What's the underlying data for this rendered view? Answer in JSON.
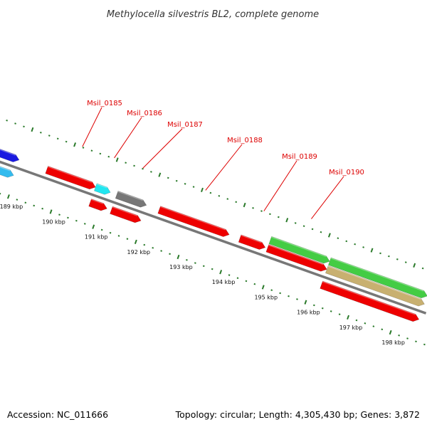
{
  "title": "Methylocella silvestris BL2, complete genome",
  "footer": {
    "accession": "Accession: NC_011666",
    "stats": "Topology: circular; Length: 4,305,430 bp; Genes: 3,872"
  },
  "colors": {
    "backbone": "#777777",
    "tick": "#2a7a2a",
    "label": "#dd0000",
    "cds_red": "#ee0000",
    "cds_blue": "#1a1ae0",
    "cds_lightblue": "#33bbee",
    "cds_cyan": "#22e6f0",
    "cds_gray": "#777777",
    "cds_green": "#44cc44",
    "cds_tan": "#c8b070"
  },
  "scale_labels": [
    "189 kbp",
    "190 kbp",
    "191 kbp",
    "192 kbp",
    "193 kbp",
    "194 kbp",
    "195 kbp",
    "196 kbp",
    "197 kbp",
    "198 kbp"
  ],
  "gene_labels": [
    "Msil_0185",
    "Msil_0186",
    "Msil_0187",
    "Msil_0188",
    "Msil_0189",
    "Msil_0190"
  ],
  "genes": [
    {
      "start": 188.0,
      "end": 188.95,
      "color": "cds_blue",
      "track": "outer1",
      "label_index": -1
    },
    {
      "start": 188.0,
      "end": 188.95,
      "color": "cds_lightblue",
      "track": "inner1",
      "label_index": -1
    },
    {
      "start": 189.6,
      "end": 190.75,
      "color": "cds_red",
      "track": "outer1",
      "label_index": 0
    },
    {
      "start": 190.75,
      "end": 191.1,
      "color": "cds_cyan",
      "track": "outer1",
      "label_index": 1
    },
    {
      "start": 190.75,
      "end": 191.15,
      "color": "cds_red",
      "track": "inner1",
      "label_index": -1
    },
    {
      "start": 191.25,
      "end": 191.95,
      "color": "cds_gray",
      "track": "outer1",
      "label_index": 2
    },
    {
      "start": 191.25,
      "end": 191.95,
      "color": "cds_red",
      "track": "inner1",
      "label_index": -1
    },
    {
      "start": 192.25,
      "end": 193.9,
      "color": "cds_red",
      "track": "outer1",
      "label_index": 3
    },
    {
      "start": 194.15,
      "end": 194.75,
      "color": "cds_red",
      "track": "outer1",
      "label_index": 4
    },
    {
      "start": 194.8,
      "end": 196.2,
      "color": "cds_green",
      "track": "outer2",
      "label_index": 5
    },
    {
      "start": 194.8,
      "end": 196.2,
      "color": "cds_red",
      "track": "outer1",
      "label_index": -1
    },
    {
      "start": 196.2,
      "end": 198.5,
      "color": "cds_green",
      "track": "outer2",
      "label_index": -1
    },
    {
      "start": 196.2,
      "end": 198.5,
      "color": "cds_tan",
      "track": "outer1",
      "label_index": -1
    },
    {
      "start": 196.2,
      "end": 198.5,
      "color": "cds_red",
      "track": "inner1",
      "label_index": -1
    }
  ]
}
